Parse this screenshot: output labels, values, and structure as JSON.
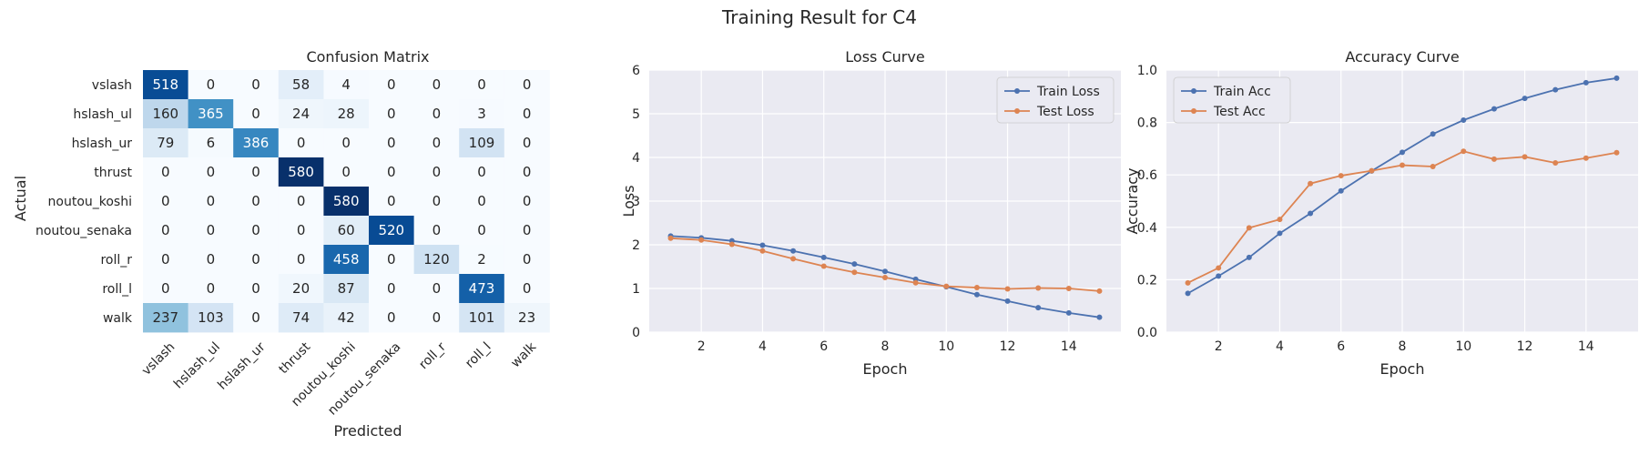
{
  "figure": {
    "title": "Training Result for C4"
  },
  "chart_data": [
    {
      "type": "heatmap",
      "title": "Confusion Matrix",
      "xlabel": "Predicted",
      "ylabel": "Actual",
      "labels": [
        "vslash",
        "hslash_ul",
        "hslash_ur",
        "thrust",
        "noutou_koshi",
        "noutou_senaka",
        "roll_r",
        "roll_l",
        "walk"
      ],
      "matrix": [
        [
          518,
          0,
          0,
          58,
          4,
          0,
          0,
          0,
          0
        ],
        [
          160,
          365,
          0,
          24,
          28,
          0,
          0,
          3,
          0
        ],
        [
          79,
          6,
          386,
          0,
          0,
          0,
          0,
          109,
          0
        ],
        [
          0,
          0,
          0,
          580,
          0,
          0,
          0,
          0,
          0
        ],
        [
          0,
          0,
          0,
          0,
          580,
          0,
          0,
          0,
          0
        ],
        [
          0,
          0,
          0,
          0,
          60,
          520,
          0,
          0,
          0
        ],
        [
          0,
          0,
          0,
          0,
          458,
          0,
          120,
          2,
          0
        ],
        [
          0,
          0,
          0,
          20,
          87,
          0,
          0,
          473,
          0
        ],
        [
          237,
          103,
          0,
          74,
          42,
          0,
          0,
          101,
          23
        ]
      ],
      "vmin": 0,
      "vmax": 580,
      "colormap": "Blues"
    },
    {
      "type": "line",
      "title": "Loss Curve",
      "xlabel": "Epoch",
      "ylabel": "Loss",
      "x": [
        1,
        2,
        3,
        4,
        5,
        6,
        7,
        8,
        9,
        10,
        11,
        12,
        13,
        14,
        15
      ],
      "xticks": [
        2,
        4,
        6,
        8,
        10,
        12,
        14
      ],
      "xlim": [
        0.3,
        15.7
      ],
      "ylim": [
        0,
        6
      ],
      "yticks": [
        0,
        1,
        2,
        3,
        4,
        5,
        6
      ],
      "grid": true,
      "legend_position": "upper right",
      "series": [
        {
          "name": "Train Loss",
          "color": "#4c72b0",
          "values": [
            2.2,
            2.16,
            2.09,
            1.99,
            1.86,
            1.71,
            1.56,
            1.39,
            1.21,
            1.04,
            0.86,
            0.71,
            0.56,
            0.44,
            0.34
          ]
        },
        {
          "name": "Test Loss",
          "color": "#dd8452",
          "values": [
            2.15,
            2.11,
            2.01,
            1.86,
            1.68,
            1.51,
            1.37,
            1.25,
            1.13,
            1.05,
            1.02,
            0.99,
            1.01,
            1.0,
            0.94
          ]
        }
      ]
    },
    {
      "type": "line",
      "title": "Accuracy Curve",
      "xlabel": "Epoch",
      "ylabel": "Accuracy",
      "x": [
        1,
        2,
        3,
        4,
        5,
        6,
        7,
        8,
        9,
        10,
        11,
        12,
        13,
        14,
        15
      ],
      "xticks": [
        2,
        4,
        6,
        8,
        10,
        12,
        14
      ],
      "xlim": [
        0.3,
        15.7
      ],
      "ylim": [
        0,
        1.0
      ],
      "yticks": [
        0.0,
        0.2,
        0.4,
        0.6,
        0.8,
        1.0
      ],
      "yticklabels": [
        "0.0",
        "0.2",
        "0.4",
        "0.6",
        "0.8",
        "1.0"
      ],
      "grid": true,
      "legend_position": "upper left",
      "series": [
        {
          "name": "Train Acc",
          "color": "#4c72b0",
          "values": [
            0.148,
            0.214,
            0.285,
            0.377,
            0.453,
            0.539,
            0.615,
            0.686,
            0.756,
            0.809,
            0.852,
            0.892,
            0.925,
            0.952,
            0.969
          ]
        },
        {
          "name": "Test Acc",
          "color": "#dd8452",
          "values": [
            0.188,
            0.245,
            0.398,
            0.43,
            0.567,
            0.597,
            0.616,
            0.637,
            0.632,
            0.69,
            0.66,
            0.669,
            0.646,
            0.664,
            0.685
          ]
        }
      ]
    }
  ]
}
